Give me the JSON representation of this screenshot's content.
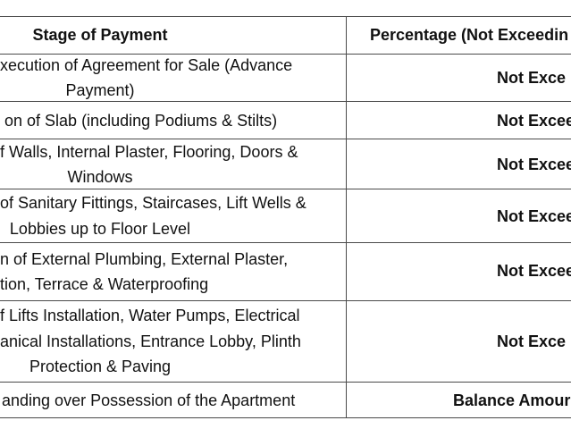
{
  "table": {
    "header": [
      "Stage of Payment",
      "Percentage (Not Exceedin"
    ],
    "rows": [
      {
        "stage": [
          "xecution of Agreement for Sale (Advance",
          "Payment)"
        ],
        "percentage": "Not Exce"
      },
      {
        "stage": [
          "on of Slab (including Podiums & Stilts)"
        ],
        "percentage": "Not Excee"
      },
      {
        "stage": [
          "f Walls, Internal Plaster, Flooring, Doors &",
          "Windows"
        ],
        "percentage": "Not Excee"
      },
      {
        "stage": [
          "of Sanitary Fittings, Staircases, Lift Wells &",
          "Lobbies up to Floor Level"
        ],
        "percentage": "Not Excee"
      },
      {
        "stage": [
          "n of External Plumbing, External Plaster,",
          "tion, Terrace & Waterproofing"
        ],
        "percentage": "Not Excee"
      },
      {
        "stage": [
          "f Lifts Installation, Water Pumps, Electrical",
          "anical Installations, Entrance Lobby, Plinth",
          "Protection & Paving"
        ],
        "percentage": "Not Exce"
      },
      {
        "stage": [
          "anding over Possession of the Apartment"
        ],
        "percentage": "Balance Amour"
      }
    ]
  }
}
